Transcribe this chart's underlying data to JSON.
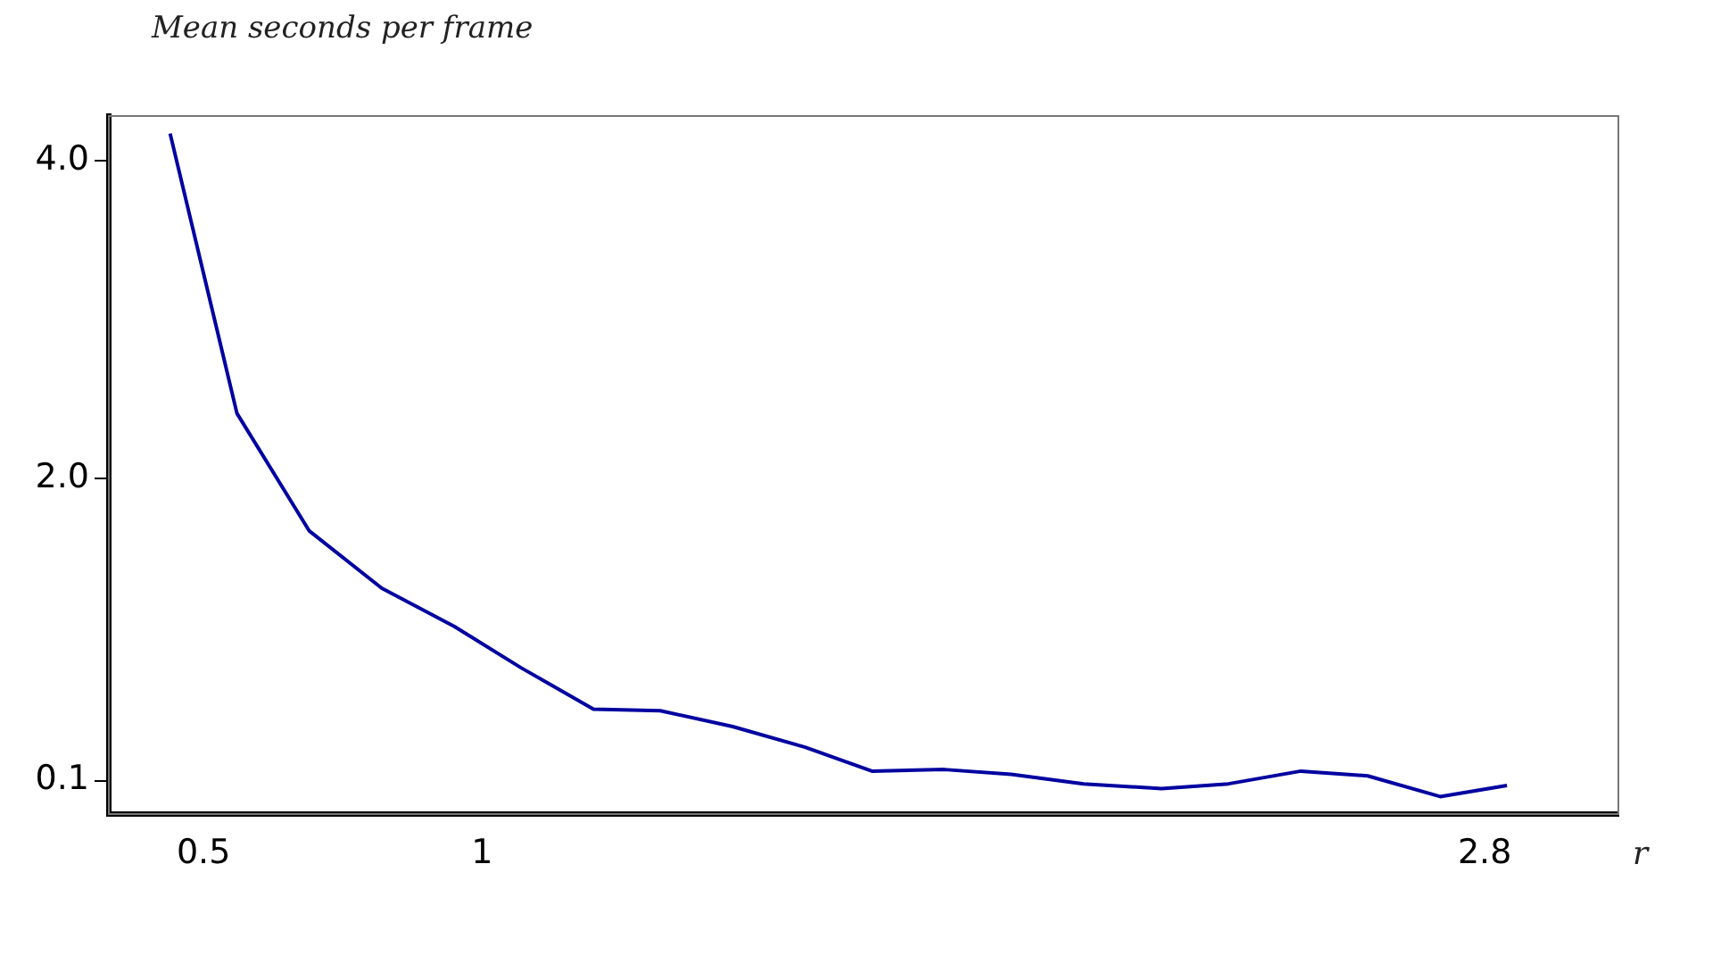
{
  "chart_data": {
    "type": "line",
    "ylabel": "Mean seconds per frame",
    "xlabel": "r",
    "x": [
      0.44,
      0.56,
      0.69,
      0.82,
      0.95,
      1.07,
      1.2,
      1.32,
      1.45,
      1.58,
      1.7,
      1.83,
      1.95,
      2.08,
      2.22,
      2.34,
      2.47,
      2.59,
      2.72,
      2.84
    ],
    "series": [
      {
        "color": "#0000a0",
        "values": [
          4.17,
          2.41,
          1.67,
          1.31,
          1.07,
          0.81,
          0.55,
          0.54,
          0.44,
          0.31,
          0.16,
          0.17,
          0.14,
          0.08,
          0.05,
          0.08,
          0.16,
          0.13,
          0.0,
          0.07
        ]
      }
    ],
    "xlim": [
      0.33,
      3.04
    ],
    "ylim": [
      -0.11,
      4.28
    ],
    "xticks": [
      0.5,
      1,
      2.8
    ],
    "yticks": [
      {
        "value": 0.1,
        "label": "0.1"
      },
      {
        "value": 2,
        "label": "2.0"
      },
      {
        "value": 4,
        "label": "4.0"
      }
    ],
    "grid": false,
    "legend": false,
    "marker": "none",
    "line_style": "solid"
  }
}
